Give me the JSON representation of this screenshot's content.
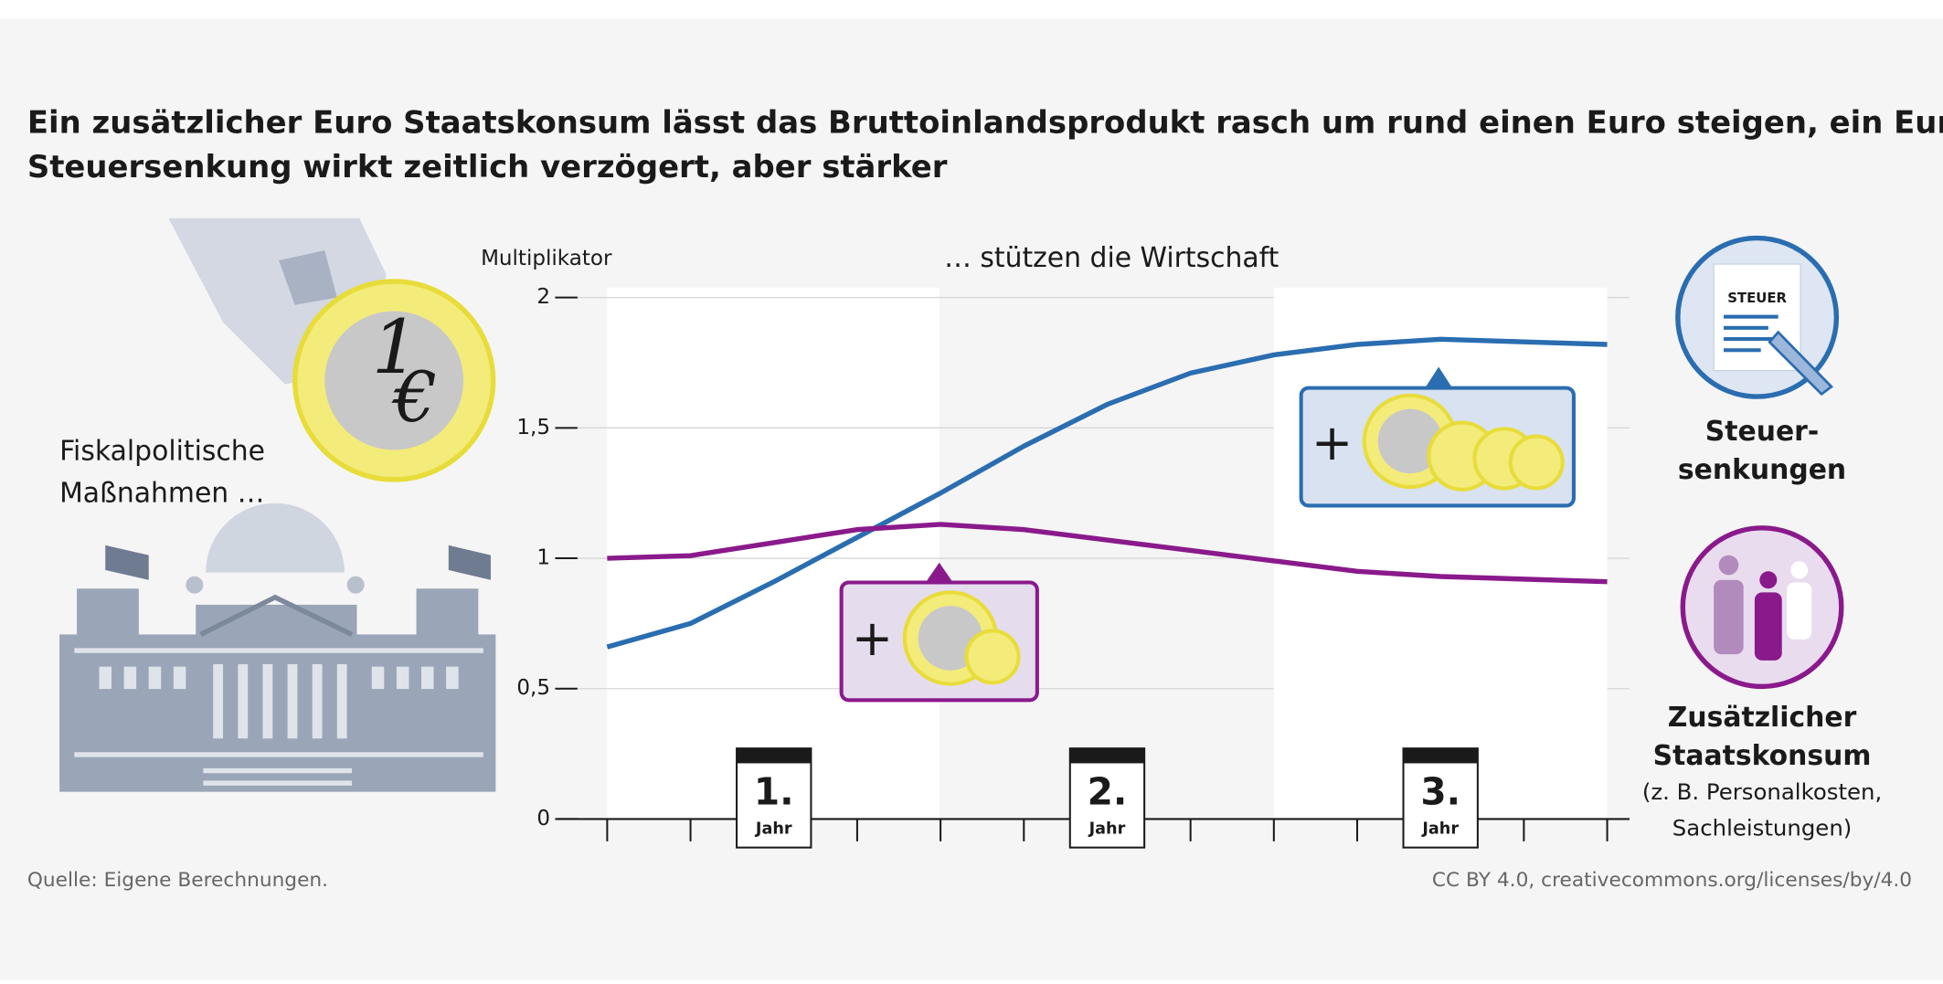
{
  "chart_data": {
    "type": "line",
    "title": "Ein zusätzlicher Euro Staatskonsum lässt das Bruttoinlandsprodukt rasch um rund einen Euro steigen, ein Euro Steuersenkung wirkt zeitlich verzögert, aber stärker",
    "subtitle": "… stützen die Wirtschaft",
    "intro_lines": [
      "Fiskalpolitische",
      "Maßnahmen …"
    ],
    "y_label": "Multiplikator",
    "ylim": [
      0,
      2
    ],
    "yticks": [
      0,
      {
        "value": 0.5,
        "label": "0,5"
      },
      1,
      {
        "value": 1.5,
        "label": "1,5"
      },
      2
    ],
    "categories": [
      null,
      null,
      {
        "number": "1.",
        "unit": "Jahr"
      },
      null,
      null,
      null,
      {
        "number": "2.",
        "unit": "Jahr"
      },
      null,
      null,
      null,
      {
        "number": "3.",
        "unit": "Jahr"
      },
      null,
      null
    ],
    "series": [
      {
        "name_lines": [
          "Steuer-",
          "senkungen"
        ],
        "color": "#2a6db0",
        "icon_text": "STEUER",
        "values": [
          0.66,
          0.75,
          0.91,
          1.08,
          1.25,
          1.43,
          1.59,
          1.71,
          1.78,
          1.82,
          1.84,
          1.83,
          1.82
        ]
      },
      {
        "name_lines": [
          "Zusätzlicher",
          "Staatskonsum"
        ],
        "note_lines": [
          "(z. B. Personalkosten,",
          "Sachleistungen)"
        ],
        "color": "#8a1a8c",
        "values": [
          1.0,
          1.01,
          1.06,
          1.11,
          1.13,
          1.11,
          1.07,
          1.03,
          0.99,
          0.95,
          0.93,
          0.92,
          0.91
        ]
      }
    ],
    "grid": true,
    "source": "Quelle: Eigene Berechnungen.",
    "license": "CC BY 4.0, creativecommons.org/licenses/by/4.0"
  }
}
